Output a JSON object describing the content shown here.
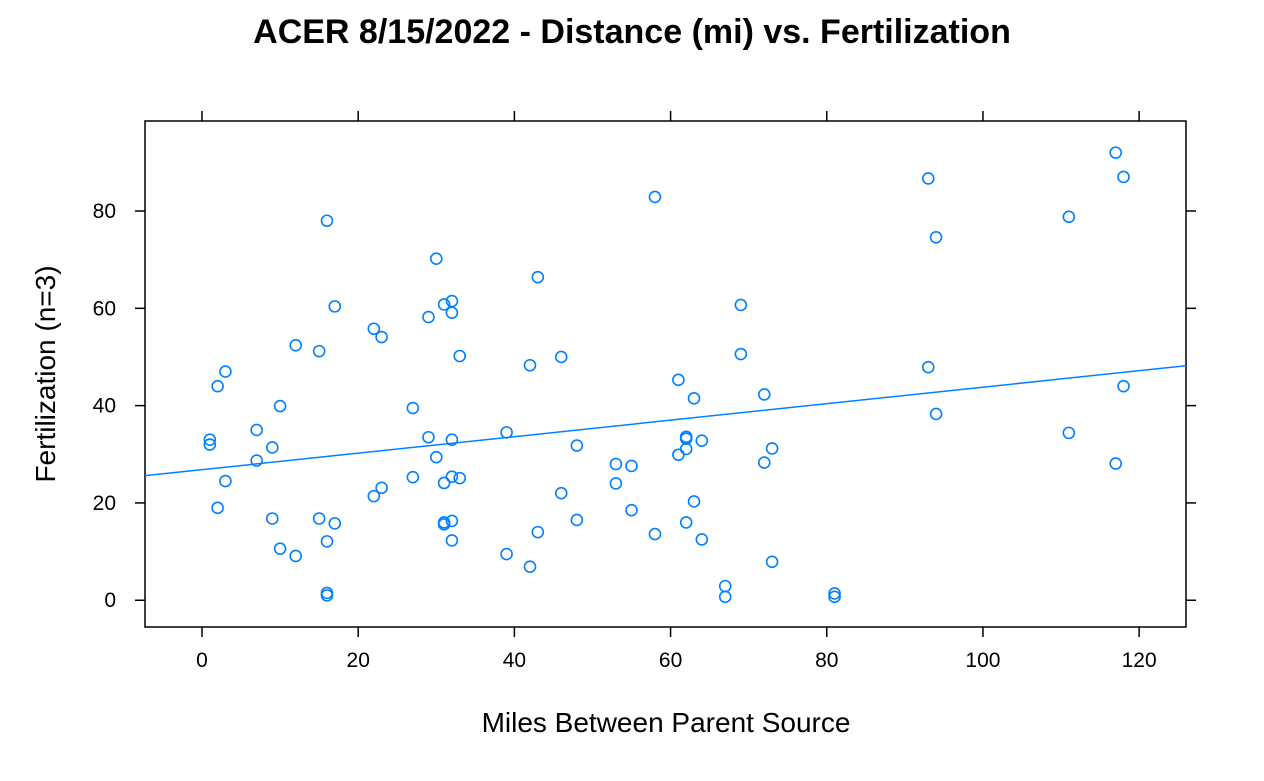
{
  "chart_data": {
    "type": "scatter",
    "title": "ACER 8/15/2022 - Distance (mi) vs. Fertilization",
    "xlabel": "Miles Between Parent Source",
    "ylabel": "Fertilization (n=3)",
    "xlim": [
      -7.3,
      126
    ],
    "ylim": [
      -5.5,
      98.5
    ],
    "xticks": [
      0,
      20,
      40,
      60,
      80,
      100,
      120
    ],
    "yticks": [
      0,
      20,
      40,
      60,
      80
    ],
    "grid": false,
    "colors": {
      "points": "#0080ff",
      "line": "#0080ff",
      "frame": "#000000"
    },
    "regression_line": {
      "x": [
        -7.3,
        126
      ],
      "y": [
        25.6,
        48.2
      ]
    },
    "points": [
      {
        "x": 1,
        "y": 33
      },
      {
        "x": 1,
        "y": 32
      },
      {
        "x": 2,
        "y": 44
      },
      {
        "x": 2,
        "y": 19
      },
      {
        "x": 3,
        "y": 47
      },
      {
        "x": 3,
        "y": 24.5
      },
      {
        "x": 7,
        "y": 35
      },
      {
        "x": 7,
        "y": 28.7
      },
      {
        "x": 9,
        "y": 31.4
      },
      {
        "x": 9,
        "y": 16.8
      },
      {
        "x": 10,
        "y": 39.9
      },
      {
        "x": 10,
        "y": 10.6
      },
      {
        "x": 12,
        "y": 52.4
      },
      {
        "x": 12,
        "y": 9.1
      },
      {
        "x": 15,
        "y": 51.2
      },
      {
        "x": 15,
        "y": 16.8
      },
      {
        "x": 16,
        "y": 78
      },
      {
        "x": 16,
        "y": 12.1
      },
      {
        "x": 16,
        "y": 1.5
      },
      {
        "x": 16,
        "y": 1
      },
      {
        "x": 17,
        "y": 60.4
      },
      {
        "x": 17,
        "y": 15.8
      },
      {
        "x": 22,
        "y": 55.8
      },
      {
        "x": 22,
        "y": 21.4
      },
      {
        "x": 23,
        "y": 54.1
      },
      {
        "x": 23,
        "y": 23.1
      },
      {
        "x": 27,
        "y": 39.5
      },
      {
        "x": 27,
        "y": 25.3
      },
      {
        "x": 29,
        "y": 58.2
      },
      {
        "x": 29,
        "y": 33.5
      },
      {
        "x": 30,
        "y": 70.2
      },
      {
        "x": 30,
        "y": 29.4
      },
      {
        "x": 31,
        "y": 60.8
      },
      {
        "x": 31,
        "y": 24.1
      },
      {
        "x": 31,
        "y": 16
      },
      {
        "x": 31,
        "y": 15.6
      },
      {
        "x": 32,
        "y": 61.5
      },
      {
        "x": 32,
        "y": 59.1
      },
      {
        "x": 32,
        "y": 33
      },
      {
        "x": 32,
        "y": 25.4
      },
      {
        "x": 32,
        "y": 16.3
      },
      {
        "x": 32,
        "y": 12.3
      },
      {
        "x": 33,
        "y": 50.2
      },
      {
        "x": 33,
        "y": 25.1
      },
      {
        "x": 39,
        "y": 34.5
      },
      {
        "x": 39,
        "y": 9.5
      },
      {
        "x": 42,
        "y": 48.3
      },
      {
        "x": 42,
        "y": 6.9
      },
      {
        "x": 43,
        "y": 66.4
      },
      {
        "x": 43,
        "y": 14
      },
      {
        "x": 46,
        "y": 50
      },
      {
        "x": 46,
        "y": 22
      },
      {
        "x": 48,
        "y": 31.8
      },
      {
        "x": 48,
        "y": 16.5
      },
      {
        "x": 53,
        "y": 28
      },
      {
        "x": 53,
        "y": 24
      },
      {
        "x": 55,
        "y": 27.6
      },
      {
        "x": 55,
        "y": 18.5
      },
      {
        "x": 58,
        "y": 82.9
      },
      {
        "x": 58,
        "y": 13.6
      },
      {
        "x": 61,
        "y": 45.3
      },
      {
        "x": 61,
        "y": 29.9
      },
      {
        "x": 62,
        "y": 33.6
      },
      {
        "x": 62,
        "y": 33.2
      },
      {
        "x": 62,
        "y": 31.1
      },
      {
        "x": 62,
        "y": 16
      },
      {
        "x": 63,
        "y": 41.5
      },
      {
        "x": 63,
        "y": 20.3
      },
      {
        "x": 64,
        "y": 32.8
      },
      {
        "x": 64,
        "y": 12.5
      },
      {
        "x": 67,
        "y": 2.9
      },
      {
        "x": 67,
        "y": 0.7
      },
      {
        "x": 69,
        "y": 60.7
      },
      {
        "x": 69,
        "y": 50.6
      },
      {
        "x": 72,
        "y": 42.3
      },
      {
        "x": 72,
        "y": 28.3
      },
      {
        "x": 73,
        "y": 31.2
      },
      {
        "x": 73,
        "y": 7.9
      },
      {
        "x": 81,
        "y": 1.4
      },
      {
        "x": 81,
        "y": 0.7
      },
      {
        "x": 93,
        "y": 86.7
      },
      {
        "x": 93,
        "y": 47.9
      },
      {
        "x": 94,
        "y": 74.6
      },
      {
        "x": 94,
        "y": 38.3
      },
      {
        "x": 111,
        "y": 78.8
      },
      {
        "x": 111,
        "y": 34.4
      },
      {
        "x": 117,
        "y": 92
      },
      {
        "x": 117,
        "y": 28.1
      },
      {
        "x": 118,
        "y": 87
      },
      {
        "x": 118,
        "y": 44
      }
    ]
  }
}
